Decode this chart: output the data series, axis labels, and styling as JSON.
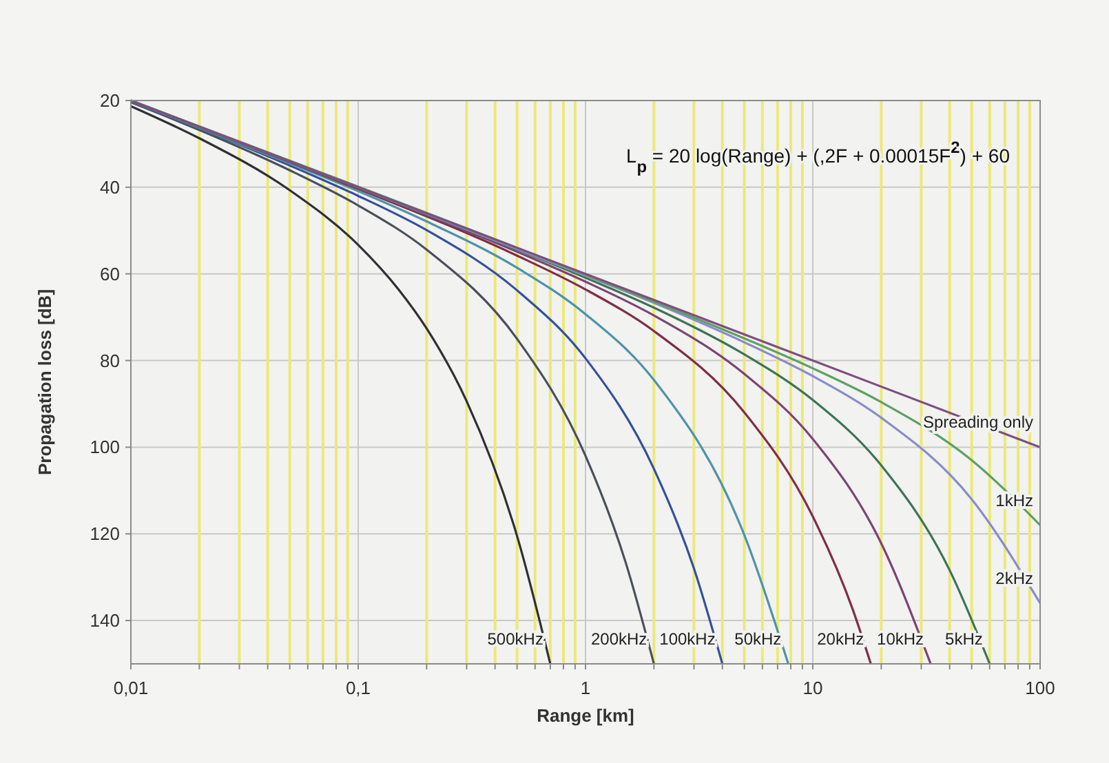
{
  "chart_data": {
    "type": "line",
    "xlabel": "Range [km]",
    "ylabel": "Propagation loss [dB]",
    "log": "x",
    "grid": true,
    "marker": "none",
    "line_style": "solid",
    "xlim": [
      0.01,
      100
    ],
    "ylim": [
      150,
      20
    ],
    "xticks": [
      {
        "value": 0.01,
        "label": "0,01"
      },
      {
        "value": 0.02,
        "label": null
      },
      {
        "value": 0.03,
        "label": null
      },
      {
        "value": 0.04,
        "label": null
      },
      {
        "value": 0.05,
        "label": null
      },
      {
        "value": 0.06,
        "label": null
      },
      {
        "value": 0.07,
        "label": null
      },
      {
        "value": 0.08,
        "label": null
      },
      {
        "value": 0.09,
        "label": null
      },
      {
        "value": 0.1,
        "label": "0,1"
      },
      {
        "value": 0.2,
        "label": null
      },
      {
        "value": 0.3,
        "label": null
      },
      {
        "value": 0.4,
        "label": null
      },
      {
        "value": 0.5,
        "label": null
      },
      {
        "value": 0.6,
        "label": null
      },
      {
        "value": 0.7,
        "label": null
      },
      {
        "value": 0.8,
        "label": null
      },
      {
        "value": 0.9,
        "label": null
      },
      1,
      {
        "value": 2,
        "label": null
      },
      {
        "value": 3,
        "label": null
      },
      {
        "value": 4,
        "label": null
      },
      {
        "value": 5,
        "label": null
      },
      {
        "value": 6,
        "label": null
      },
      {
        "value": 7,
        "label": null
      },
      {
        "value": 8,
        "label": null
      },
      {
        "value": 9,
        "label": null
      },
      10,
      {
        "value": 20,
        "label": null
      },
      {
        "value": 30,
        "label": null
      },
      {
        "value": 40,
        "label": null
      },
      {
        "value": 50,
        "label": null
      },
      {
        "value": 60,
        "label": null
      },
      {
        "value": 70,
        "label": null
      },
      {
        "value": 80,
        "label": null
      },
      {
        "value": 90,
        "label": null
      },
      100
    ],
    "yticks": [
      20,
      40,
      60,
      80,
      100,
      120,
      140
    ],
    "annotations": [
      "L$_{p}$ = 20 log(Range) + (,2F + 0.00015F$^{2}$) + 60"
    ],
    "series": [
      {
        "name": "500kHz",
        "color": "#2f3035",
        "x": [
          0.01,
          0.02,
          0.05,
          0.1,
          0.15,
          0.2,
          0.3,
          0.5,
          0.7
        ],
        "values": [
          21.3,
          28.7,
          40.7,
          53.3,
          63.5,
          72.6,
          89.4,
          120.5,
          150
        ]
      },
      {
        "name": "200kHz",
        "color": "#4a4f5c",
        "x": [
          0.01,
          0.02,
          0.05,
          0.1,
          0.2,
          0.5,
          1,
          1.5,
          2
        ],
        "values": [
          20.4,
          26.8,
          36.1,
          44.2,
          54.4,
          75,
          102,
          126.5,
          150
        ]
      },
      {
        "name": "100kHz",
        "color": "#34509c",
        "x": [
          0.01,
          0.02,
          0.05,
          0.1,
          0.2,
          0.5,
          1,
          2,
          3,
          4
        ],
        "values": [
          20.2,
          26.4,
          35,
          42,
          49.9,
          63.8,
          79.5,
          105,
          128,
          150
        ]
      },
      {
        "name": "50kHz",
        "color": "#4f93a8",
        "x": [
          0.01,
          0.05,
          0.1,
          0.2,
          0.5,
          1,
          2,
          5,
          7.8
        ],
        "values": [
          20.1,
          34.5,
          40.9,
          47.9,
          58.6,
          69.3,
          84.5,
          120.3,
          150
        ]
      },
      {
        "name": "20kHz",
        "color": "#7e2f45",
        "x": [
          0.01,
          0.05,
          0.1,
          0.5,
          1,
          2,
          5,
          10,
          15,
          18
        ],
        "values": [
          20,
          34.2,
          40.4,
          55.8,
          63.6,
          73.2,
          92,
          116,
          137.5,
          150
        ]
      },
      {
        "name": "10kHz",
        "color": "#7c4474",
        "x": [
          0.01,
          0.1,
          0.5,
          1,
          2,
          5,
          10,
          20,
          33
        ],
        "values": [
          20,
          40.2,
          54.9,
          61.8,
          69.6,
          83.1,
          98.1,
          122.2,
          150
        ]
      },
      {
        "name": "5kHz",
        "color": "#3f7356",
        "x": [
          0.01,
          0.1,
          1,
          2,
          5,
          10,
          20,
          40,
          60
        ],
        "values": [
          20,
          40.1,
          60.9,
          67.8,
          78.6,
          89.1,
          104.2,
          128.4,
          150
        ]
      },
      {
        "name": "2kHz",
        "color": "#8a8cc8",
        "x": [
          0.01,
          0.1,
          1,
          2,
          5,
          10,
          20,
          50,
          100
        ],
        "values": [
          20,
          40,
          60.4,
          66.7,
          75.8,
          83.6,
          93.2,
          112,
          136
        ]
      },
      {
        "name": "1kHz",
        "color": "#5f9f66",
        "x": [
          0.01,
          1,
          5,
          10,
          20,
          50,
          100
        ],
        "values": [
          20,
          60.2,
          74.9,
          81.8,
          89.6,
          103,
          118
        ]
      },
      {
        "name": "Spreading only",
        "color": "#7d4f7f",
        "x": [
          0.01,
          100
        ],
        "values": [
          20,
          100
        ]
      }
    ]
  }
}
